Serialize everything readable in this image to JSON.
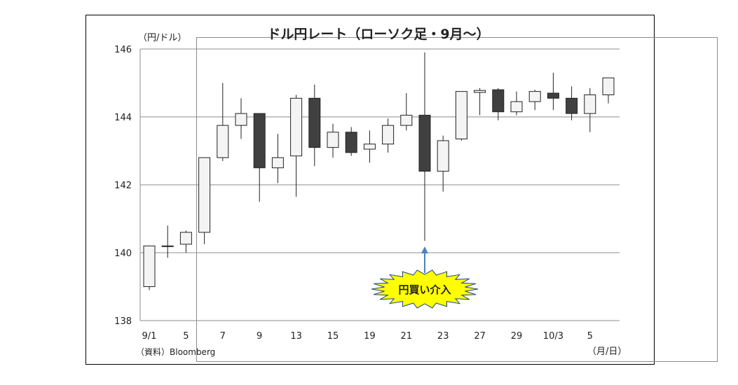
{
  "chart_data": {
    "type": "candlestick",
    "title": "ドル円レート（ローソク足・9月～）",
    "ylabel": "（円/ドル）",
    "xlabel": "（月/日）",
    "source": "（資料）Bloomberg",
    "ylim": [
      138,
      146
    ],
    "yticks": [
      138,
      140,
      142,
      144,
      146
    ],
    "grid": true,
    "xticks": [
      {
        "index": 0,
        "label": "9/1"
      },
      {
        "index": 2,
        "label": "5"
      },
      {
        "index": 4,
        "label": "7"
      },
      {
        "index": 6,
        "label": "9"
      },
      {
        "index": 8,
        "label": "13"
      },
      {
        "index": 10,
        "label": "15"
      },
      {
        "index": 12,
        "label": "19"
      },
      {
        "index": 14,
        "label": "21"
      },
      {
        "index": 16,
        "label": "23"
      },
      {
        "index": 18,
        "label": "27"
      },
      {
        "index": 20,
        "label": "29"
      },
      {
        "index": 22,
        "label": "10/3"
      },
      {
        "index": 24,
        "label": "5"
      }
    ],
    "candles": [
      {
        "o": 139.0,
        "h": 140.2,
        "l": 138.9,
        "c": 140.2
      },
      {
        "o": 140.2,
        "h": 140.8,
        "l": 139.85,
        "c": 140.2
      },
      {
        "o": 140.25,
        "h": 140.65,
        "l": 140.0,
        "c": 140.6
      },
      {
        "o": 140.6,
        "h": 142.8,
        "l": 140.25,
        "c": 142.8
      },
      {
        "o": 142.8,
        "h": 145.0,
        "l": 142.7,
        "c": 143.75
      },
      {
        "o": 143.75,
        "h": 144.55,
        "l": 143.35,
        "c": 144.1
      },
      {
        "o": 144.1,
        "h": 144.1,
        "l": 141.5,
        "c": 142.5
      },
      {
        "o": 142.5,
        "h": 143.5,
        "l": 142.05,
        "c": 142.8
      },
      {
        "o": 142.85,
        "h": 144.65,
        "l": 141.65,
        "c": 144.55
      },
      {
        "o": 144.55,
        "h": 144.95,
        "l": 142.55,
        "c": 143.1
      },
      {
        "o": 143.1,
        "h": 143.8,
        "l": 142.8,
        "c": 143.55
      },
      {
        "o": 143.55,
        "h": 143.7,
        "l": 142.85,
        "c": 142.95
      },
      {
        "o": 143.05,
        "h": 143.6,
        "l": 142.65,
        "c": 143.2
      },
      {
        "o": 143.2,
        "h": 143.95,
        "l": 142.95,
        "c": 143.75
      },
      {
        "o": 143.75,
        "h": 144.7,
        "l": 143.6,
        "c": 144.05
      },
      {
        "o": 144.05,
        "h": 145.9,
        "l": 140.35,
        "c": 142.4
      },
      {
        "o": 142.4,
        "h": 143.45,
        "l": 141.8,
        "c": 143.3
      },
      {
        "o": 143.35,
        "h": 144.75,
        "l": 143.3,
        "c": 144.75
      },
      {
        "o": 144.72,
        "h": 144.85,
        "l": 144.05,
        "c": 144.78
      },
      {
        "o": 144.8,
        "h": 144.85,
        "l": 143.9,
        "c": 144.15
      },
      {
        "o": 144.15,
        "h": 144.75,
        "l": 144.05,
        "c": 144.45
      },
      {
        "o": 144.45,
        "h": 144.8,
        "l": 144.2,
        "c": 144.75
      },
      {
        "o": 144.7,
        "h": 145.3,
        "l": 144.2,
        "c": 144.55
      },
      {
        "o": 144.55,
        "h": 144.9,
        "l": 143.9,
        "c": 144.1
      },
      {
        "o": 144.1,
        "h": 144.85,
        "l": 143.55,
        "c": 144.65
      },
      {
        "o": 144.65,
        "h": 145.15,
        "l": 144.4,
        "c": 145.15
      }
    ],
    "up_color": "#f4f4f4",
    "down_color": "#404040",
    "annotation": {
      "text": "円買い介入",
      "candle_index": 15,
      "fill": "#ffff00",
      "arrow_color": "#4f81bd"
    }
  }
}
